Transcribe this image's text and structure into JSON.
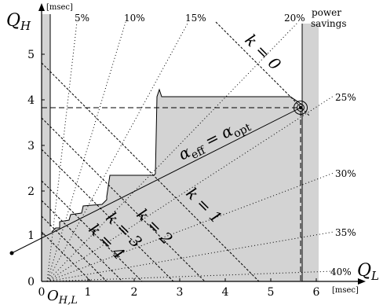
{
  "axes": {
    "y_label": "Q",
    "y_sub": "H",
    "x_label": "Q",
    "x_sub": "L",
    "y_unit": "[msec]",
    "x_unit": "[msec]",
    "x_ticks": [
      "0",
      "1",
      "2",
      "3",
      "4",
      "5",
      "6"
    ],
    "y_ticks": [
      "0",
      "1",
      "2",
      "3",
      "4",
      "5"
    ],
    "origin_label": "O",
    "origin_sub": "H,L"
  },
  "power_savings": {
    "title": "power",
    "title2": "savings",
    "labels": [
      "5%",
      "10%",
      "15%",
      "20%",
      "25%",
      "30%",
      "35%",
      "40%"
    ]
  },
  "k_labels": [
    "k = 0",
    "k = 1",
    "k = 2",
    "k = 3",
    "k = 4"
  ],
  "alpha_label": {
    "lhs": "α",
    "lhs_sub": "eff",
    "eq": "=",
    "rhs": "α",
    "rhs_sub": "opt"
  },
  "colors": {
    "fill": "#d3d3d3",
    "line": "#000000"
  }
}
